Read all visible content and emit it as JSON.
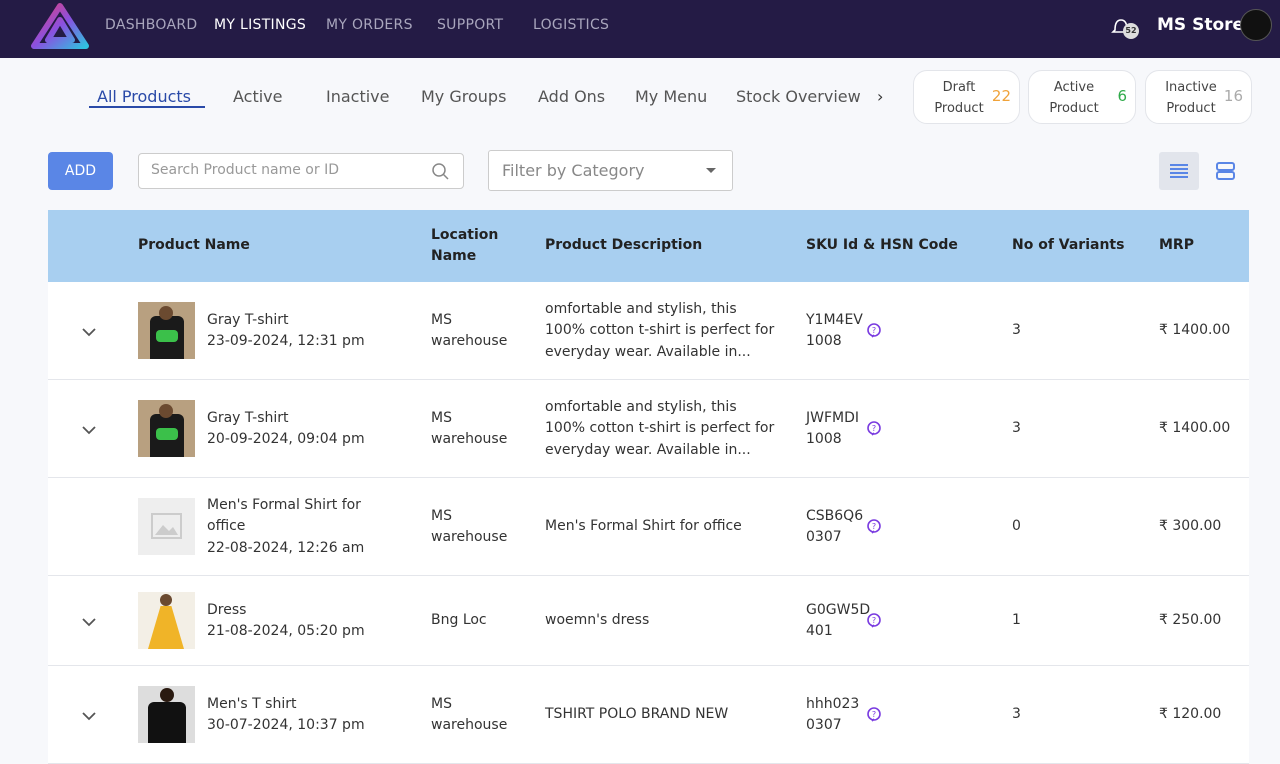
{
  "nav": {
    "items": [
      "DASHBOARD",
      "MY LISTINGS",
      "MY ORDERS",
      "SUPPORT",
      "LOGISTICS"
    ],
    "active": "MY LISTINGS",
    "notification_count": "52",
    "store_name": "MS Store"
  },
  "tabs": {
    "items": [
      "All Products",
      "Active",
      "Inactive",
      "My Groups",
      "Add Ons",
      "My Menu",
      "Stock Overview"
    ],
    "active": "All Products"
  },
  "counters": [
    {
      "label": "Draft Product",
      "count": 22
    },
    {
      "label": "Active Product",
      "count": 6
    },
    {
      "label": "Inactive Product",
      "count": 16
    }
  ],
  "toolbar": {
    "add_button": "ADD",
    "search_placeholder": "Search Product name or ID",
    "filter_placeholder": "Filter by Category"
  },
  "table": {
    "headers": [
      "Product Name",
      "Location Name",
      "Product Description",
      "SKU Id & HSN Code",
      "No of Variants",
      "MRP"
    ],
    "rows": [
      {
        "name": "Gray T-shirt",
        "date": "23-09-2024, 12:31 pm",
        "location": "MS warehouse",
        "description": "omfortable and stylish, this 100% cotton t-shirt is perfect for everyday wear. Available in...",
        "sku": "Y1M4EV",
        "hsn": "1008",
        "variants": 3,
        "mrp": "₹ 1400.00"
      },
      {
        "name": "Gray T-shirt",
        "date": "20-09-2024, 09:04 pm",
        "location": "MS warehouse",
        "description": "omfortable and stylish, this 100% cotton t-shirt is perfect for everyday wear. Available in...",
        "sku": "JWFMDI",
        "hsn": "1008",
        "variants": 3,
        "mrp": "₹ 1400.00"
      },
      {
        "name": "Men's Formal Shirt for office",
        "date": "22-08-2024, 12:26 am",
        "location": "MS warehouse",
        "description": "Men's Formal Shirt for office",
        "sku": "CSB6Q6",
        "hsn": "0307",
        "variants": 0,
        "mrp": "₹ 300.00"
      },
      {
        "name": "Dress",
        "date": "21-08-2024, 05:20 pm",
        "location": "Bng Loc",
        "description": "woemn's dress",
        "sku": "G0GW5D",
        "hsn": "401",
        "variants": 1,
        "mrp": "₹ 250.00"
      },
      {
        "name": "Men's T shirt",
        "date": "30-07-2024, 10:37 pm",
        "location": "MS warehouse",
        "description": "TSHIRT POLO BRAND NEW",
        "sku": "hhh023",
        "hsn": "0307",
        "variants": 3,
        "mrp": "₹ 120.00"
      }
    ]
  }
}
